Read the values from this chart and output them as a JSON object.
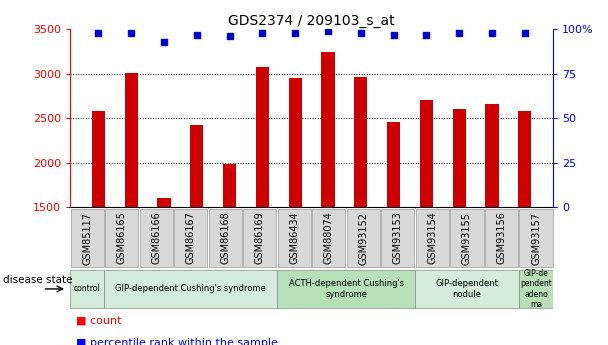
{
  "title": "GDS2374 / 209103_s_at",
  "samples": [
    "GSM85117",
    "GSM86165",
    "GSM86166",
    "GSM86167",
    "GSM86168",
    "GSM86169",
    "GSM86434",
    "GSM88074",
    "GSM93152",
    "GSM93153",
    "GSM93154",
    "GSM93155",
    "GSM93156",
    "GSM93157"
  ],
  "bar_values": [
    2580,
    3010,
    1600,
    2420,
    1980,
    3080,
    2950,
    3250,
    2960,
    2460,
    2700,
    2600,
    2660,
    2580
  ],
  "percentile_values": [
    98,
    98,
    93,
    97,
    96,
    98,
    98,
    99,
    98,
    97,
    97,
    98,
    98,
    98
  ],
  "bar_color": "#cc0000",
  "dot_color": "#0000cc",
  "ylim_left": [
    1500,
    3500
  ],
  "ylim_right": [
    0,
    100
  ],
  "yticks_left": [
    1500,
    2000,
    2500,
    3000,
    3500
  ],
  "yticks_right": [
    0,
    25,
    50,
    75,
    100
  ],
  "ytick_right_labels": [
    "0",
    "25",
    "50",
    "75",
    "100%"
  ],
  "grid_values": [
    2000,
    2500,
    3000
  ],
  "disease_groups": [
    {
      "label": "control",
      "start": 0,
      "end": 0,
      "color": "#d4edda"
    },
    {
      "label": "GIP-dependent Cushing's syndrome",
      "start": 1,
      "end": 5,
      "color": "#d4edda"
    },
    {
      "label": "ACTH-dependent Cushing's\nsyndrome",
      "start": 6,
      "end": 9,
      "color": "#b8e0b8"
    },
    {
      "label": "GIP-dependent\nnodule",
      "start": 10,
      "end": 12,
      "color": "#d4edda"
    },
    {
      "label": "GIP-de\npendent\nadeno\nma",
      "start": 13,
      "end": 13,
      "color": "#b8e0b8"
    }
  ],
  "legend_count_label": "count",
  "legend_pct_label": "percentile rank within the sample",
  "disease_state_label": "disease state",
  "background_color": "#ffffff",
  "tick_label_fontsize": 7,
  "title_fontsize": 10,
  "bar_width": 0.4
}
